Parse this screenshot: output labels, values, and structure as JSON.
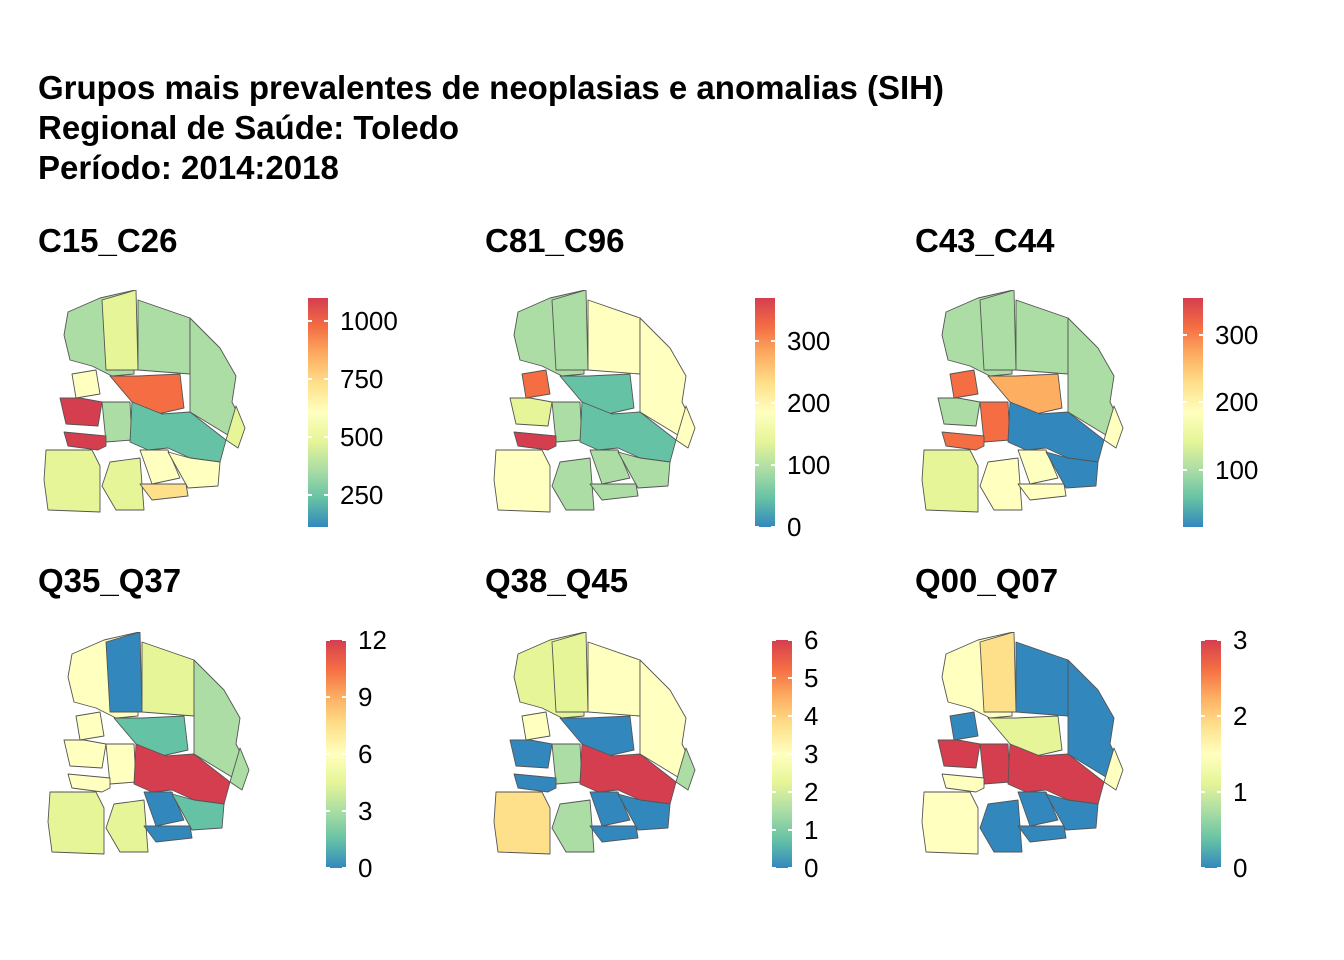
{
  "title": {
    "line1": "Grupos mais prevalentes de neoplasias e anomalias (SIH)",
    "line2": "Regional de Saúde: Toledo",
    "line3": "Período: 2014:2018"
  },
  "palette": [
    "#3288bd",
    "#66c2a5",
    "#abdda4",
    "#e6f598",
    "#ffffbf",
    "#fee08b",
    "#fdae61",
    "#f46d43",
    "#d53e4f"
  ],
  "panels": [
    {
      "title": "C15_C26",
      "legend": {
        "min": 110,
        "max": 1100,
        "ticks": [
          250,
          500,
          750,
          1000
        ]
      }
    },
    {
      "title": "C81_C96",
      "legend": {
        "min": 0,
        "max": 370,
        "ticks": [
          0,
          100,
          200,
          300
        ]
      }
    },
    {
      "title": "C43_C44",
      "legend": {
        "min": 15,
        "max": 355,
        "ticks": [
          100,
          200,
          300
        ]
      }
    },
    {
      "title": "Q35_Q37",
      "legend": {
        "min": 0,
        "max": 12,
        "ticks": [
          0,
          3,
          6,
          9,
          12
        ]
      }
    },
    {
      "title": "Q38_Q45",
      "legend": {
        "min": 0,
        "max": 6,
        "ticks": [
          0,
          1,
          2,
          3,
          4,
          5,
          6
        ]
      }
    },
    {
      "title": "Q00_Q07",
      "legend": {
        "min": 0,
        "max": 3,
        "ticks": [
          0,
          1,
          2,
          3
        ]
      }
    }
  ]
}
